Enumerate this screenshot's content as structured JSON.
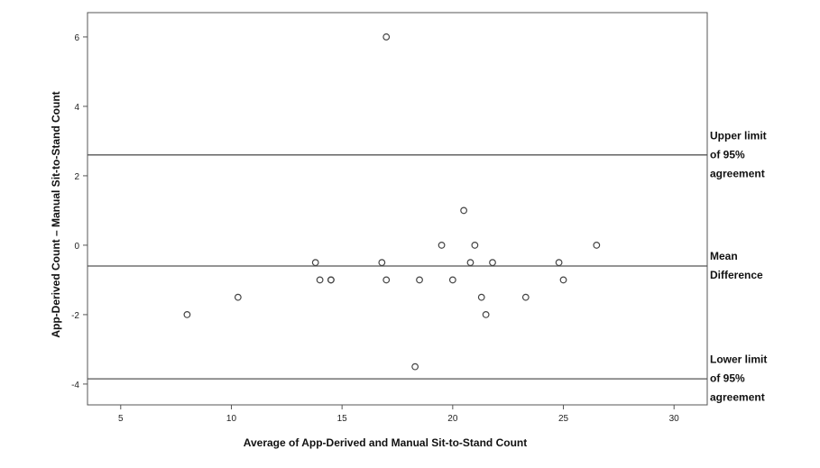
{
  "chart_data": {
    "type": "scatter",
    "xlabel": "Average of App-Derived and Manual Sit-to-Stand Count",
    "ylabel": "App-Derived Count – Manual Sit-to-Stand Count",
    "xlim": [
      3.5,
      31.5
    ],
    "ylim": [
      -4.6,
      6.7
    ],
    "x_ticks": [
      5,
      10,
      15,
      20,
      25,
      30
    ],
    "y_ticks": [
      -4,
      -2,
      0,
      2,
      4,
      6
    ],
    "grid": false,
    "marker": "open-circle",
    "points": [
      {
        "x": 8.0,
        "y": -2.0
      },
      {
        "x": 10.3,
        "y": -1.5
      },
      {
        "x": 13.8,
        "y": -0.5
      },
      {
        "x": 14.0,
        "y": -1.0
      },
      {
        "x": 14.5,
        "y": -1.0
      },
      {
        "x": 14.5,
        "y": -1.0
      },
      {
        "x": 16.8,
        "y": -0.5
      },
      {
        "x": 17.0,
        "y": -1.0
      },
      {
        "x": 17.0,
        "y": 6.0
      },
      {
        "x": 18.3,
        "y": -3.5
      },
      {
        "x": 18.5,
        "y": -1.0
      },
      {
        "x": 19.5,
        "y": 0.0
      },
      {
        "x": 20.0,
        "y": -1.0
      },
      {
        "x": 20.5,
        "y": 1.0
      },
      {
        "x": 20.8,
        "y": -0.5
      },
      {
        "x": 21.0,
        "y": 0.0
      },
      {
        "x": 21.3,
        "y": -1.5
      },
      {
        "x": 21.5,
        "y": -2.0
      },
      {
        "x": 21.8,
        "y": -0.5
      },
      {
        "x": 23.3,
        "y": -1.5
      },
      {
        "x": 24.8,
        "y": -0.5
      },
      {
        "x": 25.0,
        "y": -1.0
      },
      {
        "x": 26.5,
        "y": 0.0
      }
    ],
    "reference_lines": [
      {
        "y": 2.6,
        "label_lines": [
          "Upper limit",
          "of 95%",
          "agreement"
        ]
      },
      {
        "y": -0.6,
        "label_lines": [
          "Mean",
          "Difference"
        ]
      },
      {
        "y": -3.85,
        "label_lines": [
          "Lower limit",
          "of 95%",
          "agreement"
        ]
      }
    ],
    "colors": {
      "marker": "#444444",
      "line": "#555555",
      "frame": "#555555"
    }
  }
}
